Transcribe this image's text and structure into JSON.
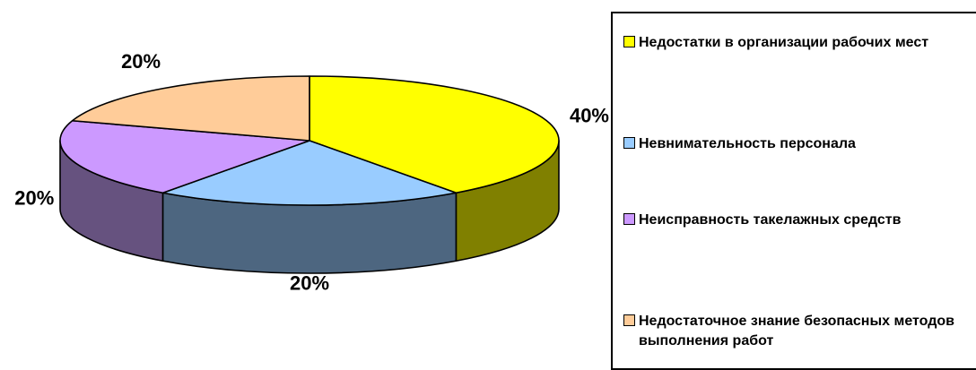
{
  "chart_data": {
    "type": "pie",
    "style": "3d",
    "categories": [
      "Недостатки в организации рабочих мест",
      "Невнимательность персонала",
      "Неисправность такелажных средств",
      "Недостаточное знание безопасных методов выполнения работ"
    ],
    "values": [
      40,
      20,
      20,
      20
    ],
    "data_labels": [
      "40%",
      "20%",
      "20%",
      "20%"
    ],
    "colors": [
      "#FFFF00",
      "#99CCFF",
      "#CC99FF",
      "#FFCC99"
    ],
    "side_colors": [
      "#808000",
      "#4D6680",
      "#66527F",
      "#806650"
    ],
    "legend_position": "right"
  },
  "legend": {
    "items": [
      {
        "label": "Недостатки в организации рабочих мест",
        "color": "#FFFF00"
      },
      {
        "label": "Невнимательность персонала",
        "color": "#99CCFF"
      },
      {
        "label": "Неисправность такелажных средств",
        "color": "#CC99FF"
      },
      {
        "label": "Недостаточное знание безопасных методов выполнения работ",
        "color": "#FFCC99"
      }
    ]
  }
}
